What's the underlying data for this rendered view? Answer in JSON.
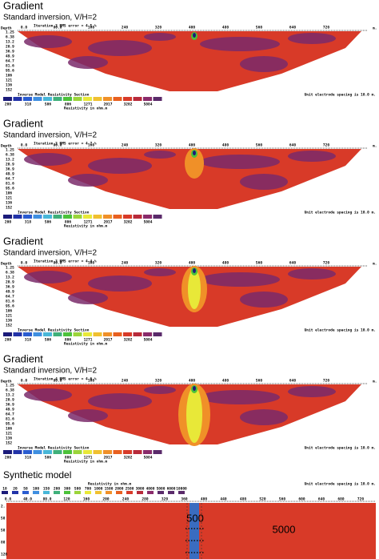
{
  "panels": [
    {
      "title": "Gradient",
      "subtitle": "Standard inversion, V/H=2",
      "iteration": "Iteration 3 RMS error = 4.5 %"
    },
    {
      "title": "Gradient",
      "subtitle": "Standard inversion, V/H=2",
      "iteration": "Iteration 3 RMS error = 4.7 %"
    },
    {
      "title": "Gradient",
      "subtitle": "Standard inversion, V/H=2",
      "iteration": "Iteration 3 RMS error = 4.4 %"
    },
    {
      "title": "Gradient",
      "subtitle": "Standard inversion, V/H=2",
      "iteration": "Iteration 4 RMS error = 4.6 %"
    }
  ],
  "x_labels": [
    "0.0",
    "80.0",
    "160",
    "240",
    "320",
    "400",
    "480",
    "560",
    "640",
    "720"
  ],
  "x_unit": "m.",
  "depth_title": "Depth",
  "depth_labels": [
    "1.25",
    "6.38",
    "13.2",
    "20.9",
    "36.9",
    "49.9",
    "64.7",
    "81.6",
    "95.6",
    "106",
    "121",
    "136",
    "152"
  ],
  "section_title": "Inverse Model Resistivity Section",
  "scale_labels": [
    "200",
    "318",
    "506",
    "806",
    "1271",
    "2017",
    "3202",
    "5084"
  ],
  "scale_unit": "Resistivity in ohm.m",
  "spacing_note": "Unit electrode spacing is 10.0 m.",
  "synthetic": {
    "title": "Synthetic model",
    "scale_unit": "Resistivity in ohm.m",
    "scale_labels": [
      "10",
      "20",
      "50",
      "100",
      "150",
      "200",
      "300",
      "500",
      "700",
      "1000",
      "1500",
      "2000",
      "2500",
      "3000",
      "4000",
      "5000",
      "6000",
      "10000"
    ],
    "spacing_note": "Unit electrode spacing is 10.0 m.",
    "x_labels": [
      "0.0",
      "40.0",
      "80.0",
      "120",
      "160",
      "200",
      "240",
      "280",
      "320",
      "360",
      "400",
      "440",
      "480",
      "520",
      "560",
      "600",
      "640",
      "680",
      "720"
    ],
    "depth_labels": [
      "2.",
      "50",
      "50",
      "80",
      "120"
    ],
    "block_label": "500",
    "background_label": "5000"
  }
}
